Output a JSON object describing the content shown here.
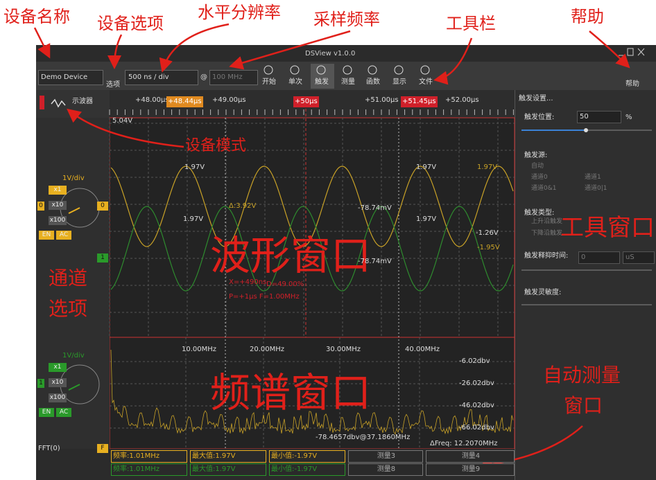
{
  "annotations": {
    "device_name": "设备名称",
    "device_options": "设备选项",
    "horizontal_resolution": "水平分辨率",
    "sample_rate": "采样频率",
    "toolbar": "工具栏",
    "help": "帮助",
    "device_mode": "设备模式",
    "waveform_window": "波形窗口",
    "tool_window": "工具窗口",
    "channel_options": [
      "通道",
      "选项"
    ],
    "spectrum_window": "频谱窗口",
    "auto_measure_window": [
      "自动测量",
      "窗口"
    ]
  },
  "window": {
    "title": "DSView v1.0.0"
  },
  "toolbar": {
    "device": "Demo Device",
    "options": "选项",
    "time_div": "500 ns / div",
    "at": "@",
    "sample_rate": "100 MHz",
    "buttons": [
      "开始",
      "单次",
      "触发",
      "测量",
      "函数",
      "显示",
      "文件"
    ],
    "help": "帮助"
  },
  "mode": "示波器",
  "ruler": {
    "ticks": [
      "+48.00μs",
      "+49.00μs",
      "+51.00μs",
      "+52.00μs"
    ],
    "cursors": [
      "+48.44μs",
      "+50μs",
      "+51.45μs"
    ]
  },
  "waveform": {
    "top_voltage": "5.04V",
    "labels": [
      "1.97V",
      "1.97V",
      "1.97V",
      "Δ:3.92V",
      "-78.74mV",
      "1.97V",
      "1.97V",
      "-1.26V",
      "-1.95V",
      "-78.74mV",
      "X=+490ns",
      "D=49.00%",
      "P=+1μs F=1.00MHz"
    ]
  },
  "channels": [
    {
      "marker": "0",
      "tag": "0",
      "scale": "1V/div",
      "probes": [
        "x1",
        "x10",
        "x100"
      ],
      "enable": "EN",
      "coupling": "AC"
    },
    {
      "marker": "1",
      "tag": "1",
      "scale": "1V/div",
      "probes": [
        "x1",
        "x10",
        "x100"
      ],
      "enable": "EN",
      "coupling": "AC"
    }
  ],
  "fft": {
    "label": "FFT(0)",
    "tag": "F"
  },
  "spectrum": {
    "x_labels": [
      "10.00MHz",
      "20.00MHz",
      "30.00MHz",
      "40.00MHz"
    ],
    "y_labels": [
      "-6.02dbv",
      "-26.02dbv",
      "-46.02dbv",
      "-66.02dbv"
    ],
    "cursor": "-78.4657dbv@37.1860MHz",
    "delta": "ΔFreq: 12.2070MHz"
  },
  "measurements": [
    [
      "频率:1.01MHz",
      "最大值:1.97V",
      "最小值:-1.97V",
      "测量3",
      "测量4"
    ],
    [
      "频率:1.01MHz",
      "最大值:1.97V",
      "最小值:-1.97V",
      "测量8",
      "测量9"
    ]
  ],
  "trigger": {
    "title": "触发设置...",
    "position_label": "触发位置:",
    "position": "50",
    "position_unit": "%",
    "source_label": "触发源:",
    "sources": [
      "自动",
      "通道0",
      "通道1",
      "通道0&1",
      "通道0|1"
    ],
    "type_label": "触发类型:",
    "types": [
      "上升沿触发",
      "下降沿触发"
    ],
    "holdoff_label": "触发释抑时间:",
    "holdoff": "0",
    "holdoff_unit": "uS",
    "sensitivity_label": "触发灵敏度:"
  }
}
